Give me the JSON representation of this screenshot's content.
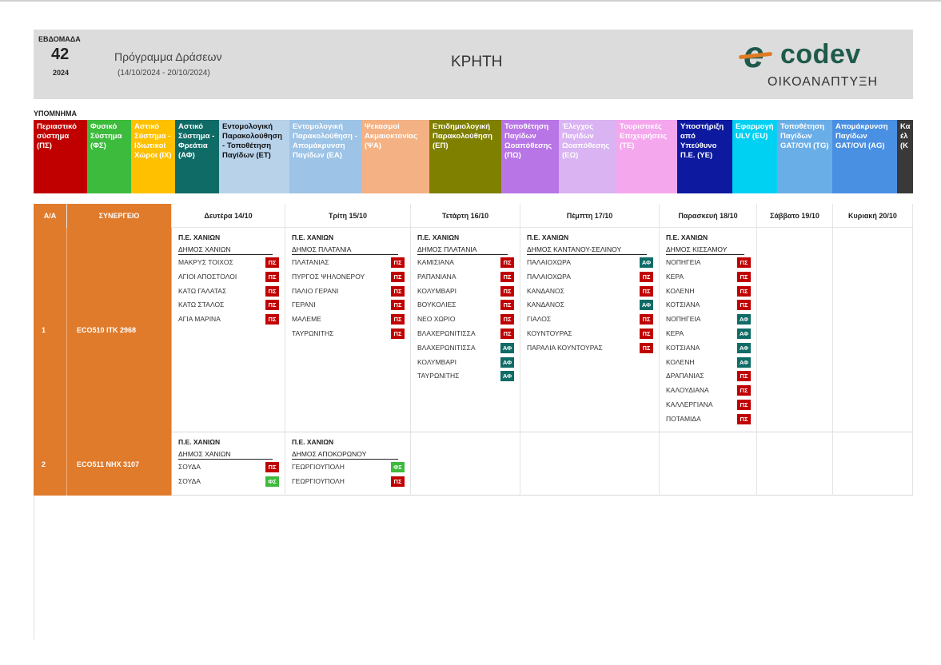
{
  "header": {
    "week_label": "ΕΒΔΟΜΑΔΑ",
    "week_number": "42",
    "year": "2024",
    "program_title": "Πρόγραμμα Δράσεων",
    "date_range": "(14/10/2024 - 20/10/2024)",
    "region": "ΚΡΗΤΗ",
    "logo_mark": "e",
    "logo_text": "codev",
    "logo_subtitle": "ΟΙΚΟΑΝΑΠΤΥΞΗ"
  },
  "legend": {
    "title": "ΥΠΟΜΝΗΜΑ",
    "items": [
      {
        "label": "Περιαστικό σύστημα (ΠΣ)",
        "color": "#c00000"
      },
      {
        "label": "Φυσικό Σύστημα (ΦΣ)",
        "color": "#3dbb3d"
      },
      {
        "label": "Αστικό Σύστημα - Ιδιωτικοί Χώροι (ΙΧ)",
        "color": "#ffc000"
      },
      {
        "label": "Αστικό Σύστημα - Φρεάτια (ΑΦ)",
        "color": "#0f6b66"
      },
      {
        "label": "Εντομολογική Παρακολούθηση - Τοποθέτηση Παγίδων (ΕΤ)",
        "color": "#b8d2ea"
      },
      {
        "label": "Εντομολογική Παρακολούθηση - Απομάκρυνση Παγίδων (ΕΑ)",
        "color": "#9dc3e6"
      },
      {
        "label": "Ψεκασμοί Ακμαιοκτονίας (ΨΑ)",
        "color": "#f4b183"
      },
      {
        "label": "Επιδημιολογική Παρακολούθηση (ΕΠ)",
        "color": "#7f7f00"
      },
      {
        "label": "Τοποθέτηση Παγίδων Ωοαπόθεσης (ΠΩ)",
        "color": "#b875e6"
      },
      {
        "label": "Έλεγχος Παγίδων Ωοαπόθεσης (ΕΩ)",
        "color": "#d9b3f2"
      },
      {
        "label": "Τουριστικές Επιχειρήσεις (ΤΕ)",
        "color": "#f5a7ee"
      },
      {
        "label": "Υποστήριξη από Υπεύθυνο Π.Ε. (ΥΕ)",
        "color": "#0d1aa0"
      },
      {
        "label": "Εφαρμογή ULV (EU)",
        "color": "#00d1f2"
      },
      {
        "label": "Τοποθέτηση Παγίδων GAT/OVI (TG)",
        "color": "#6aaee8"
      },
      {
        "label": "Απομάκρυνση Παγίδων GAT/OVI (AG)",
        "color": "#4a90e2"
      },
      {
        "label": "Κα έλ (Κ",
        "color": "#3a3838"
      }
    ]
  },
  "table": {
    "headers": {
      "aa": "Α/Α",
      "team": "ΣΥΝΕΡΓΕΙΟ",
      "days": [
        "Δευτέρα 14/10",
        "Τρίτη 15/10",
        "Τετάρτη 16/10",
        "Πέμπτη 17/10",
        "Παρασκευή 18/10",
        "Σάββατο 19/10",
        "Κυριακή 20/10"
      ]
    },
    "rows": [
      {
        "aa": "1",
        "team": "ECO510  ΙΤΚ 2968",
        "days": [
          {
            "unit": "Π.Ε. ΧΑΝΙΩΝ",
            "municipality": "ΔΗΜΟΣ ΧΑΝΙΩΝ",
            "entries": [
              {
                "place": "ΜΑΚΡΥΣ ΤΟΙΧΟΣ",
                "code": "ΠΣ"
              },
              {
                "place": "ΑΓΙΟΙ ΑΠΟΣΤΟΛΟΙ",
                "code": "ΠΣ"
              },
              {
                "place": "ΚΑΤΩ ΓΑΛΑΤΑΣ",
                "code": "ΠΣ"
              },
              {
                "place": "ΚΑΤΩ ΣΤΑΛΟΣ",
                "code": "ΠΣ"
              },
              {
                "place": "ΑΓΙΑ ΜΑΡΙΝΑ",
                "code": "ΠΣ"
              }
            ]
          },
          {
            "unit": "Π.Ε. ΧΑΝΙΩΝ",
            "municipality": "ΔΗΜΟΣ ΠΛΑΤΑΝΙΑ",
            "entries": [
              {
                "place": "ΠΛΑΤΑΝΙΑΣ",
                "code": "ΠΣ"
              },
              {
                "place": "ΠΥΡΓΟΣ ΨΗΛΟΝΕΡΟΥ",
                "code": "ΠΣ"
              },
              {
                "place": "ΠΑΛΙΟ ΓΕΡΑΝΙ",
                "code": "ΠΣ"
              },
              {
                "place": "ΓΕΡΑΝΙ",
                "code": "ΠΣ"
              },
              {
                "place": "ΜΑΛΕΜΕ",
                "code": "ΠΣ"
              },
              {
                "place": "ΤΑΥΡΩΝΙΤΗΣ",
                "code": "ΠΣ"
              }
            ]
          },
          {
            "unit": "Π.Ε. ΧΑΝΙΩΝ",
            "municipality": "ΔΗΜΟΣ ΠΛΑΤΑΝΙΑ",
            "entries": [
              {
                "place": "ΚΑΜΙΣΙΑΝΑ",
                "code": "ΠΣ"
              },
              {
                "place": "ΡΑΠΑΝΙΑΝΑ",
                "code": "ΠΣ"
              },
              {
                "place": "ΚΟΛΥΜΒΑΡΙ",
                "code": "ΠΣ"
              },
              {
                "place": "ΒΟΥΚΟΛΙΕΣ",
                "code": "ΠΣ"
              },
              {
                "place": "ΝΕΟ ΧΩΡΙΟ",
                "code": "ΠΣ"
              },
              {
                "place": "ΒΛΑΧΕΡΩΝΙΤΙΣΣΑ",
                "code": "ΠΣ"
              },
              {
                "place": "ΒΛΑΧΕΡΩΝΙΤΙΣΣΑ",
                "code": "ΑΦ"
              },
              {
                "place": "ΚΟΛΥΜΒΑΡΙ",
                "code": "ΑΦ"
              },
              {
                "place": "ΤΑΥΡΩΝΙΤΗΣ",
                "code": "ΑΦ"
              }
            ]
          },
          {
            "unit": "Π.Ε. ΧΑΝΙΩΝ",
            "municipality": "ΔΗΜΟΣ ΚΑΝΤΑΝΟΥ-ΣΕΛΙΝΟΥ",
            "entries": [
              {
                "place": "ΠΑΛΑΙΟΧΩΡΑ",
                "code": "ΑΦ"
              },
              {
                "place": "ΠΑΛΑΙΟΧΩΡΑ",
                "code": "ΠΣ"
              },
              {
                "place": "ΚΑΝΔΑΝΟΣ",
                "code": "ΠΣ"
              },
              {
                "place": "ΚΑΝΔΑΝΟΣ",
                "code": "ΑΦ"
              },
              {
                "place": "ΓΙΑΛΟΣ",
                "code": "ΠΣ"
              },
              {
                "place": "ΚΟΥΝΤΟΥΡΑΣ",
                "code": "ΠΣ"
              },
              {
                "place": "ΠΑΡΑΛΙΑ ΚΟΥΝΤΟΥΡΑΣ",
                "code": "ΠΣ"
              }
            ]
          },
          {
            "unit": "Π.Ε. ΧΑΝΙΩΝ",
            "municipality": "ΔΗΜΟΣ ΚΙΣΣΑΜΟΥ",
            "entries": [
              {
                "place": "ΝΟΠΗΓΕΙΑ",
                "code": "ΠΣ"
              },
              {
                "place": "ΚΕΡΑ",
                "code": "ΠΣ"
              },
              {
                "place": "ΚΟΛΕΝΗ",
                "code": "ΠΣ"
              },
              {
                "place": "ΚΟΤΣΙΑΝΑ",
                "code": "ΠΣ"
              },
              {
                "place": "ΝΟΠΗΓΕΙΑ",
                "code": "ΑΦ"
              },
              {
                "place": "ΚΕΡΑ",
                "code": "ΑΦ"
              },
              {
                "place": "ΚΟΤΣΙΑΝΑ",
                "code": "ΑΦ"
              },
              {
                "place": "ΚΟΛΕΝΗ",
                "code": "ΑΦ"
              },
              {
                "place": "ΔΡΑΠΑΝΙΑΣ",
                "code": "ΠΣ"
              },
              {
                "place": "ΚΑΛΟΥΔΙΑΝΑ",
                "code": "ΠΣ"
              },
              {
                "place": "ΚΑΛΛΕΡΓΙΑΝΑ",
                "code": "ΠΣ"
              },
              {
                "place": "ΠΟΤΑΜΙΔΑ",
                "code": "ΠΣ"
              }
            ]
          },
          null,
          null
        ]
      },
      {
        "aa": "2",
        "team": "ECO511  ΝΗΧ 3107",
        "days": [
          {
            "unit": "Π.Ε. ΧΑΝΙΩΝ",
            "municipality": "ΔΗΜΟΣ ΧΑΝΙΩΝ",
            "entries": [
              {
                "place": "ΣΟΥΔΑ",
                "code": "ΠΣ"
              },
              {
                "place": "ΣΟΥΔΑ",
                "code": "ΦΣ"
              }
            ]
          },
          {
            "unit": "Π.Ε. ΧΑΝΙΩΝ",
            "municipality": "ΔΗΜΟΣ ΑΠΟΚΟΡΩΝΟΥ",
            "entries": [
              {
                "place": "ΓΕΩΡΓΙΟΥΠΟΛΗ",
                "code": "ΦΣ"
              },
              {
                "place": "ΓΕΩΡΓΙΟΥΠΟΛΗ",
                "code": "ΠΣ"
              }
            ]
          },
          null,
          null,
          null,
          null,
          null
        ]
      }
    ],
    "badge_colors": {
      "ΠΣ": "#c00000",
      "ΦΣ": "#3dbb3d",
      "ΑΦ": "#0f6b66"
    }
  }
}
